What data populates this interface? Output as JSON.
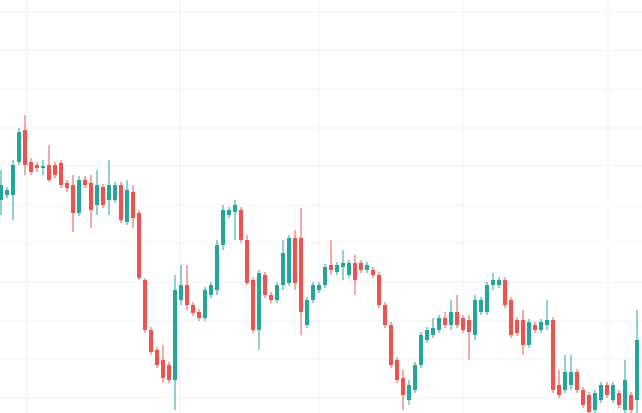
{
  "chart_data": {
    "type": "candlestick",
    "categories": [
      null,
      null,
      null,
      null,
      null,
      null,
      null,
      null,
      null,
      null,
      null,
      null,
      null,
      null,
      null,
      null,
      null,
      null,
      null,
      null,
      null,
      null,
      null,
      null,
      null,
      null,
      null,
      null,
      null,
      null,
      null,
      null,
      null,
      null,
      null,
      null,
      null,
      null,
      null,
      null,
      null,
      null,
      null,
      null,
      null,
      null,
      null,
      null,
      null,
      null,
      null,
      null,
      null,
      null,
      null,
      null,
      null,
      null,
      null,
      null,
      null,
      null,
      null,
      null,
      null,
      null,
      null,
      null,
      null,
      null,
      null,
      null,
      null,
      null,
      null,
      null,
      null,
      null,
      null,
      null,
      null,
      null,
      null,
      null,
      null,
      null,
      null,
      null,
      null,
      null,
      null,
      null,
      null,
      null,
      null,
      null,
      null,
      null,
      null,
      null,
      null,
      null,
      null,
      null,
      null,
      null,
      null
    ],
    "open": [
      213,
      218,
      218,
      251,
      283,
      251,
      248,
      245,
      248,
      248,
      250,
      230,
      228,
      200,
      233,
      230,
      208,
      226,
      213,
      213,
      228,
      191,
      221,
      200,
      133,
      83,
      63,
      53,
      48,
      33,
      113,
      128,
      108,
      101,
      95,
      118,
      123,
      168,
      198,
      201,
      203,
      173,
      133,
      83,
      138,
      118,
      113,
      128,
      130,
      175,
      175,
      88,
      113,
      123,
      128,
      148,
      141,
      146,
      138,
      150,
      150,
      143,
      143,
      138,
      108,
      88,
      53,
      35,
      13,
      23,
      48,
      73,
      78,
      83,
      95,
      88,
      101,
      95,
      93,
      78,
      101,
      101,
      128,
      128,
      133,
      113,
      93,
      93,
      68,
      88,
      83,
      88,
      93,
      28,
      23,
      28,
      41,
      23,
      18,
      3,
      13,
      28,
      13,
      20,
      3,
      18,
      13
    ],
    "high": [
      243,
      226,
      253,
      285,
      298,
      255,
      251,
      253,
      268,
      251,
      253,
      233,
      238,
      237,
      237,
      238,
      243,
      229,
      253,
      231,
      231,
      233,
      228,
      203,
      135,
      86,
      66,
      68,
      51,
      138,
      148,
      148,
      111,
      104,
      126,
      131,
      173,
      208,
      206,
      213,
      206,
      178,
      136,
      143,
      141,
      121,
      131,
      173,
      178,
      183,
      205,
      116,
      131,
      131,
      149,
      173,
      151,
      163,
      153,
      158,
      153,
      151,
      146,
      141,
      111,
      91,
      56,
      43,
      33,
      51,
      81,
      86,
      95,
      98,
      101,
      113,
      118,
      98,
      98,
      118,
      116,
      131,
      140,
      136,
      136,
      116,
      96,
      103,
      94,
      91,
      94,
      113,
      96,
      43,
      58,
      58,
      44,
      26,
      21,
      23,
      31,
      31,
      31,
      23,
      53,
      21,
      103
    ],
    "low": [
      198,
      215,
      193,
      248,
      238,
      238,
      241,
      238,
      231,
      235,
      225,
      221,
      181,
      197,
      225,
      185,
      198,
      205,
      198,
      210,
      190,
      188,
      185,
      133,
      80,
      58,
      45,
      30,
      30,
      3,
      108,
      103,
      97,
      92,
      92,
      115,
      118,
      163,
      195,
      173,
      170,
      128,
      80,
      63,
      115,
      110,
      110,
      123,
      127,
      123,
      78,
      85,
      110,
      120,
      125,
      138,
      138,
      133,
      135,
      118,
      140,
      140,
      135,
      105,
      85,
      45,
      30,
      3,
      8,
      20,
      45,
      70,
      75,
      80,
      85,
      83,
      85,
      80,
      53,
      73,
      98,
      98,
      123,
      125,
      105,
      75,
      77,
      58,
      65,
      80,
      80,
      83,
      20,
      15,
      20,
      23,
      20,
      5,
      0,
      0,
      10,
      15,
      10,
      5,
      0,
      0,
      0
    ],
    "close": [
      228,
      223,
      248,
      281,
      248,
      241,
      245,
      247,
      233,
      238,
      228,
      225,
      200,
      233,
      228,
      203,
      228,
      208,
      228,
      228,
      193,
      223,
      195,
      135,
      83,
      61,
      48,
      35,
      33,
      123,
      128,
      108,
      100,
      95,
      123,
      128,
      168,
      203,
      203,
      208,
      173,
      130,
      83,
      140,
      118,
      113,
      128,
      160,
      175,
      130,
      101,
      113,
      128,
      128,
      146,
      143,
      148,
      150,
      150,
      133,
      143,
      148,
      138,
      108,
      88,
      48,
      33,
      18,
      28,
      48,
      78,
      83,
      85,
      95,
      88,
      101,
      88,
      83,
      81,
      113,
      113,
      128,
      133,
      133,
      108,
      78,
      80,
      68,
      91,
      83,
      91,
      93,
      23,
      18,
      41,
      41,
      23,
      8,
      1,
      20,
      28,
      18,
      28,
      8,
      33,
      3,
      73
    ],
    "up_color": "#26a69a",
    "down_color": "#ef5350",
    "ylim": [
      0,
      413
    ],
    "yticks": [
      15,
      54,
      92,
      131,
      170,
      208,
      247,
      285,
      324,
      363,
      401
    ],
    "grid": true
  }
}
